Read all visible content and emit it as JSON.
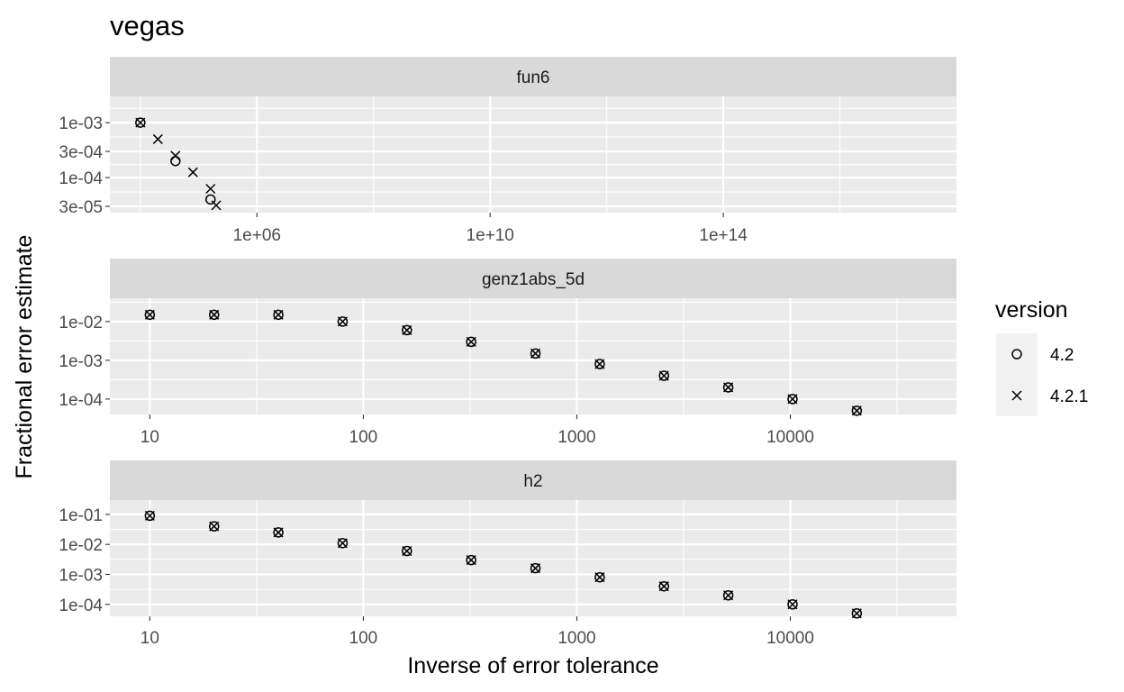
{
  "chart_data": {
    "type": "scatter",
    "title": "vegas",
    "xlabel": "Inverse of error tolerance",
    "ylabel": "Fractional error estimate",
    "grid": true,
    "x_scale": "log",
    "y_scale": "log",
    "legend": {
      "title": "version",
      "placement": "right",
      "entries": [
        {
          "label": "4.2",
          "shape": "circle"
        },
        {
          "label": "4.2.1",
          "shape": "cross"
        }
      ]
    },
    "panels": [
      {
        "name": "fun6",
        "xlim": [
          3000,
          1e+18
        ],
        "ylim": [
          2.3e-05,
          0.003
        ],
        "x_ticks": [
          {
            "value": 1000000.0,
            "label": "1e+06"
          },
          {
            "value": 10000000000.0,
            "label": "1e+10"
          },
          {
            "value": 100000000000000.0,
            "label": "1e+14"
          }
        ],
        "y_ticks": [
          {
            "value": 0.001,
            "label": "1e-03"
          },
          {
            "value": 0.0003,
            "label": "3e-04"
          },
          {
            "value": 0.0001,
            "label": "1e-04"
          },
          {
            "value": 3e-05,
            "label": "3e-05"
          }
        ],
        "series": [
          {
            "name": "4.2",
            "x": [
              10000,
              40000,
              160000
            ],
            "y": [
              0.001,
              0.0002,
              4e-05
            ]
          },
          {
            "name": "4.2.1",
            "x": [
              10000,
              20000,
              40000,
              80000,
              160000,
              200000
            ],
            "y": [
              0.001,
              0.0005,
              0.00025,
              0.000125,
              6.25e-05,
              3.125e-05
            ]
          }
        ]
      },
      {
        "name": "genz1abs_5d",
        "xlim": [
          6.5,
          60000
        ],
        "ylim": [
          4e-05,
          0.04
        ],
        "x_ticks": [
          {
            "value": 10,
            "label": "10"
          },
          {
            "value": 100,
            "label": "100"
          },
          {
            "value": 1000,
            "label": "1000"
          },
          {
            "value": 10000,
            "label": "10000"
          }
        ],
        "y_ticks": [
          {
            "value": 0.01,
            "label": "1e-02"
          },
          {
            "value": 0.001,
            "label": "1e-03"
          },
          {
            "value": 0.0001,
            "label": "1e-04"
          }
        ],
        "series": [
          {
            "name": "4.2",
            "x": [
              10,
              20,
              40,
              80,
              160,
              320,
              640,
              1280,
              2560,
              5120,
              10240,
              20480
            ],
            "y": [
              0.015,
              0.015,
              0.015,
              0.01,
              0.006,
              0.003,
              0.0015,
              0.0008,
              0.0004,
              0.0002,
              0.0001,
              5e-05
            ]
          },
          {
            "name": "4.2.1",
            "x": [
              10,
              20,
              40,
              80,
              160,
              320,
              640,
              1280,
              2560,
              5120,
              10240,
              20480
            ],
            "y": [
              0.015,
              0.015,
              0.015,
              0.01,
              0.006,
              0.003,
              0.0015,
              0.0008,
              0.0004,
              0.0002,
              0.0001,
              5e-05
            ]
          }
        ]
      },
      {
        "name": "h2",
        "xlim": [
          6.5,
          60000
        ],
        "ylim": [
          4e-05,
          0.3
        ],
        "x_ticks": [
          {
            "value": 10,
            "label": "10"
          },
          {
            "value": 100,
            "label": "100"
          },
          {
            "value": 1000,
            "label": "1000"
          },
          {
            "value": 10000,
            "label": "10000"
          }
        ],
        "y_ticks": [
          {
            "value": 0.1,
            "label": "1e-01"
          },
          {
            "value": 0.01,
            "label": "1e-02"
          },
          {
            "value": 0.001,
            "label": "1e-03"
          },
          {
            "value": 0.0001,
            "label": "1e-04"
          }
        ],
        "series": [
          {
            "name": "4.2",
            "x": [
              10,
              20,
              40,
              80,
              160,
              320,
              640,
              1280,
              2560,
              5120,
              10240,
              20480
            ],
            "y": [
              0.09,
              0.04,
              0.025,
              0.011,
              0.006,
              0.003,
              0.0016,
              0.0008,
              0.0004,
              0.0002,
              0.0001,
              5e-05
            ]
          },
          {
            "name": "4.2.1",
            "x": [
              10,
              20,
              40,
              80,
              160,
              320,
              640,
              1280,
              2560,
              5120,
              10240,
              20480
            ],
            "y": [
              0.09,
              0.04,
              0.025,
              0.011,
              0.006,
              0.003,
              0.0016,
              0.0008,
              0.0004,
              0.0002,
              0.0001,
              5e-05
            ]
          }
        ]
      }
    ]
  }
}
